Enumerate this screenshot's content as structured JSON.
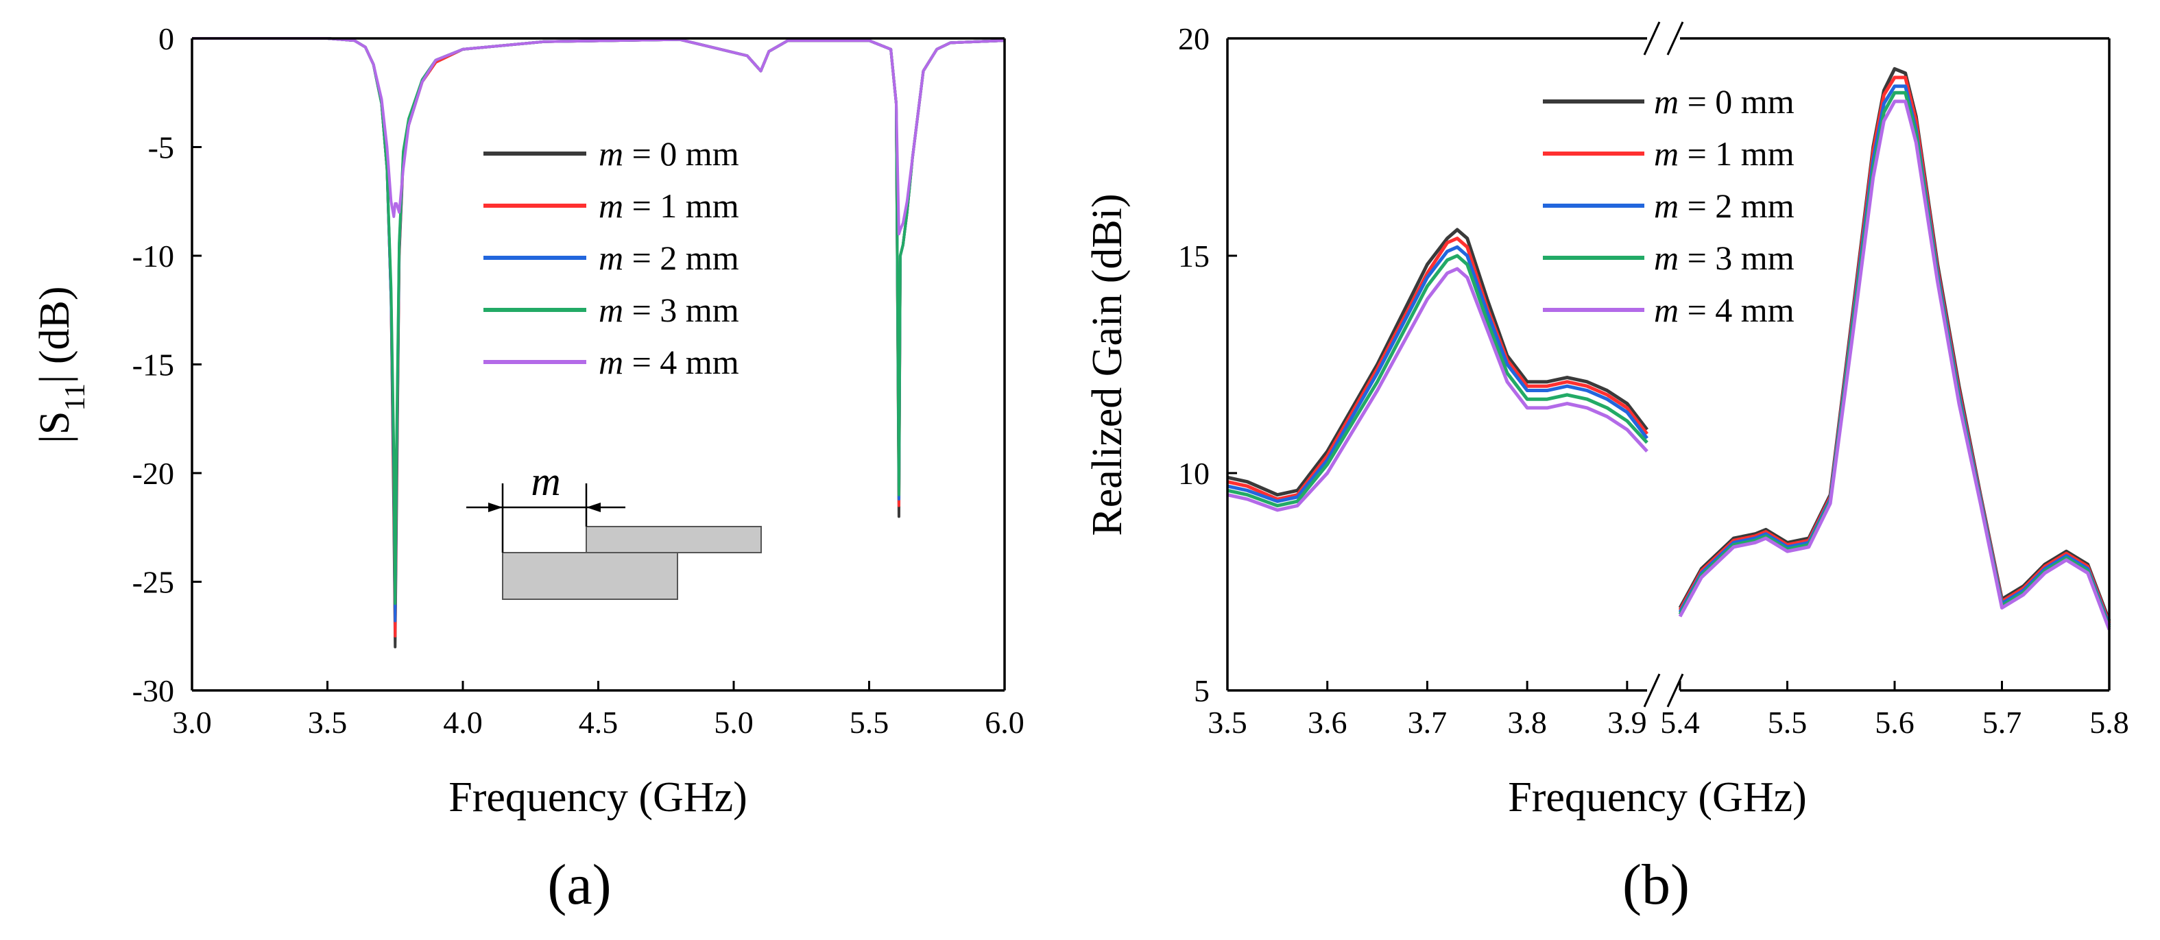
{
  "colors": {
    "m0": "#3a3a3a",
    "m1": "#ff3030",
    "m2": "#2266dd",
    "m3": "#22aa66",
    "m4": "#b36ae8"
  },
  "chart_data": [
    {
      "type": "line",
      "panel_label": "(a)",
      "xlabel": "Frequency (GHz)",
      "ylabel_main": "|S",
      "ylabel_sub": "11",
      "ylabel_tail": "| (dB)",
      "xlim": [
        3.0,
        6.0
      ],
      "ylim": [
        -30,
        0
      ],
      "xticks": [
        3.0,
        3.5,
        4.0,
        4.5,
        5.0,
        5.5,
        6.0
      ],
      "xtick_labels": [
        "3.0",
        "3.5",
        "4.0",
        "4.5",
        "5.0",
        "5.5",
        "6.0"
      ],
      "yticks": [
        0,
        -5,
        -10,
        -15,
        -20,
        -25,
        -30
      ],
      "ytick_labels": [
        "0",
        "-5",
        "-10",
        "-15",
        "-20",
        "-25",
        "-30"
      ],
      "legend_position": "center-right",
      "inset_label": "m",
      "series": [
        {
          "name_var": "m",
          "name_rest": " = 0 mm",
          "color": "#3a3a3a",
          "x": [
            3.0,
            3.3,
            3.5,
            3.6,
            3.64,
            3.67,
            3.7,
            3.72,
            3.735,
            3.745,
            3.75,
            3.755,
            3.765,
            3.78,
            3.8,
            3.85,
            3.9,
            4.0,
            4.3,
            4.8,
            5.05,
            5.1,
            5.13,
            5.2,
            5.5,
            5.58,
            5.6,
            5.61,
            5.615,
            5.625,
            5.64,
            5.66,
            5.68,
            5.7,
            5.75,
            5.8,
            6.0
          ],
          "y": [
            0,
            0,
            0,
            -0.1,
            -0.4,
            -1.2,
            -3.0,
            -6.0,
            -12.0,
            -22.0,
            -28.0,
            -22.0,
            -10.0,
            -5.5,
            -4.0,
            -2.0,
            -1.1,
            -0.5,
            -0.15,
            -0.05,
            -0.8,
            -1.5,
            -0.6,
            -0.1,
            -0.1,
            -0.5,
            -3.0,
            -22.0,
            -10.0,
            -9.5,
            -8.0,
            -5.5,
            -3.5,
            -1.5,
            -0.5,
            -0.2,
            -0.1
          ]
        },
        {
          "name_var": "m",
          "name_rest": " = 1 mm",
          "color": "#ff3030",
          "x": [
            3.0,
            3.3,
            3.5,
            3.6,
            3.64,
            3.67,
            3.7,
            3.72,
            3.735,
            3.745,
            3.75,
            3.755,
            3.765,
            3.78,
            3.8,
            3.85,
            3.9,
            4.0,
            4.3,
            4.8,
            5.05,
            5.1,
            5.13,
            5.2,
            5.5,
            5.58,
            5.6,
            5.61,
            5.615,
            5.625,
            5.64,
            5.66,
            5.68,
            5.7,
            5.75,
            5.8,
            6.0
          ],
          "y": [
            0,
            0,
            0,
            -0.1,
            -0.4,
            -1.2,
            -3.0,
            -6.0,
            -12.0,
            -21.0,
            -27.5,
            -21.0,
            -9.8,
            -5.4,
            -3.9,
            -2.0,
            -1.1,
            -0.5,
            -0.15,
            -0.05,
            -0.8,
            -1.5,
            -0.6,
            -0.1,
            -0.1,
            -0.5,
            -3.0,
            -21.5,
            -10.0,
            -9.5,
            -8.0,
            -5.5,
            -3.5,
            -1.5,
            -0.5,
            -0.2,
            -0.1
          ]
        },
        {
          "name_var": "m",
          "name_rest": " = 2 mm",
          "color": "#2266dd",
          "x": [
            3.0,
            3.3,
            3.5,
            3.6,
            3.64,
            3.67,
            3.7,
            3.72,
            3.735,
            3.745,
            3.75,
            3.755,
            3.765,
            3.78,
            3.8,
            3.85,
            3.9,
            4.0,
            4.3,
            4.8,
            5.05,
            5.1,
            5.13,
            5.2,
            5.5,
            5.58,
            5.6,
            5.61,
            5.615,
            5.625,
            5.64,
            5.66,
            5.68,
            5.7,
            5.75,
            5.8,
            6.0
          ],
          "y": [
            0,
            0,
            0,
            -0.1,
            -0.4,
            -1.2,
            -3.0,
            -6.0,
            -12.0,
            -20.0,
            -26.8,
            -20.0,
            -9.6,
            -5.3,
            -3.8,
            -1.9,
            -1.0,
            -0.5,
            -0.15,
            -0.05,
            -0.8,
            -1.5,
            -0.6,
            -0.1,
            -0.1,
            -0.5,
            -3.0,
            -21.2,
            -10.0,
            -9.5,
            -8.0,
            -5.5,
            -3.5,
            -1.5,
            -0.5,
            -0.2,
            -0.1
          ]
        },
        {
          "name_var": "m",
          "name_rest": " = 3 mm",
          "color": "#22aa66",
          "x": [
            3.0,
            3.3,
            3.5,
            3.6,
            3.64,
            3.67,
            3.7,
            3.72,
            3.735,
            3.745,
            3.75,
            3.755,
            3.765,
            3.78,
            3.8,
            3.85,
            3.9,
            4.0,
            4.3,
            4.8,
            5.05,
            5.1,
            5.13,
            5.2,
            5.5,
            5.58,
            5.6,
            5.61,
            5.615,
            5.625,
            5.64,
            5.66,
            5.68,
            5.7,
            5.75,
            5.8,
            6.0
          ],
          "y": [
            0,
            0,
            0,
            -0.1,
            -0.4,
            -1.2,
            -3.0,
            -6.0,
            -11.5,
            -19.0,
            -26.0,
            -19.0,
            -9.4,
            -5.2,
            -3.7,
            -1.9,
            -1.0,
            -0.5,
            -0.15,
            -0.05,
            -0.8,
            -1.5,
            -0.6,
            -0.1,
            -0.1,
            -0.5,
            -3.0,
            -21.0,
            -10.0,
            -9.5,
            -8.0,
            -5.5,
            -3.5,
            -1.5,
            -0.5,
            -0.2,
            -0.1
          ]
        },
        {
          "name_var": "m",
          "name_rest": " = 4 mm",
          "color": "#b36ae8",
          "x": [
            3.0,
            3.3,
            3.5,
            3.6,
            3.64,
            3.67,
            3.7,
            3.72,
            3.735,
            3.745,
            3.75,
            3.755,
            3.765,
            3.78,
            3.8,
            3.85,
            3.9,
            4.0,
            4.3,
            4.8,
            5.05,
            5.1,
            5.13,
            5.2,
            5.5,
            5.58,
            5.6,
            5.61,
            5.615,
            5.625,
            5.64,
            5.66,
            5.68,
            5.7,
            5.75,
            5.8,
            6.0
          ],
          "y": [
            0,
            0,
            0,
            -0.1,
            -0.4,
            -1.2,
            -2.8,
            -5.0,
            -7.5,
            -8.2,
            -7.6,
            -7.6,
            -8.0,
            -6.0,
            -4.0,
            -2.0,
            -1.0,
            -0.5,
            -0.15,
            -0.05,
            -0.8,
            -1.5,
            -0.6,
            -0.1,
            -0.1,
            -0.5,
            -3.0,
            -9.0,
            -8.8,
            -8.5,
            -7.5,
            -5.5,
            -3.5,
            -1.5,
            -0.5,
            -0.2,
            -0.1
          ]
        }
      ]
    },
    {
      "type": "line",
      "panel_label": "(b)",
      "xlabel": "Frequency (GHz)",
      "ylabel": "Realized Gain (dBi)",
      "axis_break": "between 3.9 and 5.4 GHz",
      "ylim": [
        5,
        20
      ],
      "yticks": [
        5,
        10,
        15,
        20
      ],
      "ytick_labels": [
        "5",
        "10",
        "15",
        "20"
      ],
      "segments": [
        {
          "xlim": [
            3.5,
            3.92
          ],
          "xticks": [
            3.5,
            3.6,
            3.7,
            3.8,
            3.9
          ],
          "xtick_labels": [
            "3.5",
            "3.6",
            "3.7",
            "3.8",
            "3.9"
          ]
        },
        {
          "xlim": [
            5.4,
            5.8
          ],
          "xticks": [
            5.4,
            5.5,
            5.6,
            5.7,
            5.8
          ],
          "xtick_labels": [
            "5.4",
            "5.5",
            "5.6",
            "5.7",
            "5.8"
          ]
        }
      ],
      "legend_position": "top-center",
      "series": [
        {
          "name_var": "m",
          "name_rest": " = 0 mm",
          "color": "#3a3a3a",
          "low_x": [
            3.5,
            3.52,
            3.55,
            3.57,
            3.6,
            3.65,
            3.7,
            3.72,
            3.73,
            3.74,
            3.76,
            3.78,
            3.8,
            3.82,
            3.84,
            3.86,
            3.88,
            3.9,
            3.92
          ],
          "low_y": [
            9.9,
            9.8,
            9.5,
            9.6,
            10.5,
            12.5,
            14.8,
            15.4,
            15.6,
            15.4,
            14.0,
            12.7,
            12.1,
            12.1,
            12.2,
            12.1,
            11.9,
            11.6,
            11.0
          ],
          "high_x": [
            5.4,
            5.42,
            5.45,
            5.47,
            5.48,
            5.5,
            5.52,
            5.54,
            5.56,
            5.58,
            5.59,
            5.6,
            5.61,
            5.62,
            5.64,
            5.66,
            5.68,
            5.7,
            5.72,
            5.74,
            5.76,
            5.78,
            5.8
          ],
          "high_y": [
            6.9,
            7.8,
            8.5,
            8.6,
            8.7,
            8.4,
            8.5,
            9.5,
            13.5,
            17.5,
            18.8,
            19.3,
            19.2,
            18.2,
            14.8,
            12.0,
            9.5,
            7.1,
            7.4,
            7.9,
            8.2,
            7.9,
            6.6
          ]
        },
        {
          "name_var": "m",
          "name_rest": " = 1 mm",
          "color": "#ff3030",
          "low_x": [
            3.5,
            3.52,
            3.55,
            3.57,
            3.6,
            3.65,
            3.7,
            3.72,
            3.73,
            3.74,
            3.76,
            3.78,
            3.8,
            3.82,
            3.84,
            3.86,
            3.88,
            3.9,
            3.92
          ],
          "low_y": [
            9.8,
            9.7,
            9.4,
            9.5,
            10.4,
            12.4,
            14.6,
            15.3,
            15.4,
            15.2,
            13.8,
            12.6,
            12.0,
            12.0,
            12.1,
            12.0,
            11.8,
            11.5,
            10.9
          ],
          "high_x": [
            5.4,
            5.42,
            5.45,
            5.47,
            5.48,
            5.5,
            5.52,
            5.54,
            5.56,
            5.58,
            5.59,
            5.6,
            5.61,
            5.62,
            5.64,
            5.66,
            5.68,
            5.7,
            5.72,
            5.74,
            5.76,
            5.78,
            5.8
          ],
          "high_y": [
            6.85,
            7.75,
            8.45,
            8.55,
            8.65,
            8.35,
            8.45,
            9.45,
            13.4,
            17.4,
            18.7,
            19.1,
            19.1,
            18.1,
            14.7,
            11.9,
            9.45,
            7.05,
            7.35,
            7.85,
            8.15,
            7.85,
            6.55
          ]
        },
        {
          "name_var": "m",
          "name_rest": " = 2 mm",
          "color": "#2266dd",
          "low_x": [
            3.5,
            3.52,
            3.55,
            3.57,
            3.6,
            3.65,
            3.7,
            3.72,
            3.73,
            3.74,
            3.76,
            3.78,
            3.8,
            3.82,
            3.84,
            3.86,
            3.88,
            3.9,
            3.92
          ],
          "low_y": [
            9.7,
            9.6,
            9.35,
            9.45,
            10.3,
            12.3,
            14.5,
            15.1,
            15.2,
            15.0,
            13.7,
            12.5,
            11.9,
            11.9,
            12.0,
            11.9,
            11.7,
            11.4,
            10.8
          ],
          "high_x": [
            5.4,
            5.42,
            5.45,
            5.47,
            5.48,
            5.5,
            5.52,
            5.54,
            5.56,
            5.58,
            5.59,
            5.6,
            5.61,
            5.62,
            5.64,
            5.66,
            5.68,
            5.7,
            5.72,
            5.74,
            5.76,
            5.78,
            5.8
          ],
          "high_y": [
            6.8,
            7.7,
            8.4,
            8.5,
            8.6,
            8.3,
            8.4,
            9.4,
            13.3,
            17.2,
            18.5,
            18.9,
            18.9,
            17.9,
            14.6,
            11.8,
            9.4,
            7.0,
            7.3,
            7.8,
            8.1,
            7.8,
            6.5
          ]
        },
        {
          "name_var": "m",
          "name_rest": " = 3 mm",
          "color": "#22aa66",
          "low_x": [
            3.5,
            3.52,
            3.55,
            3.57,
            3.6,
            3.65,
            3.7,
            3.72,
            3.73,
            3.74,
            3.76,
            3.78,
            3.8,
            3.82,
            3.84,
            3.86,
            3.88,
            3.9,
            3.92
          ],
          "low_y": [
            9.6,
            9.5,
            9.25,
            9.35,
            10.2,
            12.1,
            14.3,
            14.9,
            15.0,
            14.8,
            13.5,
            12.3,
            11.7,
            11.7,
            11.8,
            11.7,
            11.5,
            11.2,
            10.7
          ],
          "high_x": [
            5.4,
            5.42,
            5.45,
            5.47,
            5.48,
            5.5,
            5.52,
            5.54,
            5.56,
            5.58,
            5.59,
            5.6,
            5.61,
            5.62,
            5.64,
            5.66,
            5.68,
            5.7,
            5.72,
            5.74,
            5.76,
            5.78,
            5.8
          ],
          "high_y": [
            6.75,
            7.65,
            8.35,
            8.45,
            8.55,
            8.25,
            8.35,
            9.35,
            13.2,
            17.0,
            18.3,
            18.75,
            18.75,
            17.8,
            14.5,
            11.7,
            9.35,
            6.95,
            7.25,
            7.75,
            8.05,
            7.75,
            6.45
          ]
        },
        {
          "name_var": "m",
          "name_rest": " = 4 mm",
          "color": "#b36ae8",
          "low_x": [
            3.5,
            3.52,
            3.55,
            3.57,
            3.6,
            3.65,
            3.7,
            3.72,
            3.73,
            3.74,
            3.76,
            3.78,
            3.8,
            3.82,
            3.84,
            3.86,
            3.88,
            3.9,
            3.92
          ],
          "low_y": [
            9.5,
            9.4,
            9.15,
            9.25,
            10.0,
            11.9,
            14.0,
            14.6,
            14.7,
            14.5,
            13.3,
            12.1,
            11.5,
            11.5,
            11.6,
            11.5,
            11.3,
            11.0,
            10.5
          ],
          "high_x": [
            5.4,
            5.42,
            5.45,
            5.47,
            5.48,
            5.5,
            5.52,
            5.54,
            5.56,
            5.58,
            5.59,
            5.6,
            5.61,
            5.62,
            5.64,
            5.66,
            5.68,
            5.7,
            5.72,
            5.74,
            5.76,
            5.78,
            5.8
          ],
          "high_y": [
            6.7,
            7.6,
            8.3,
            8.4,
            8.5,
            8.2,
            8.3,
            9.3,
            13.0,
            16.8,
            18.1,
            18.55,
            18.55,
            17.6,
            14.4,
            11.6,
            9.3,
            6.9,
            7.2,
            7.7,
            8.0,
            7.7,
            6.4
          ]
        }
      ]
    }
  ]
}
